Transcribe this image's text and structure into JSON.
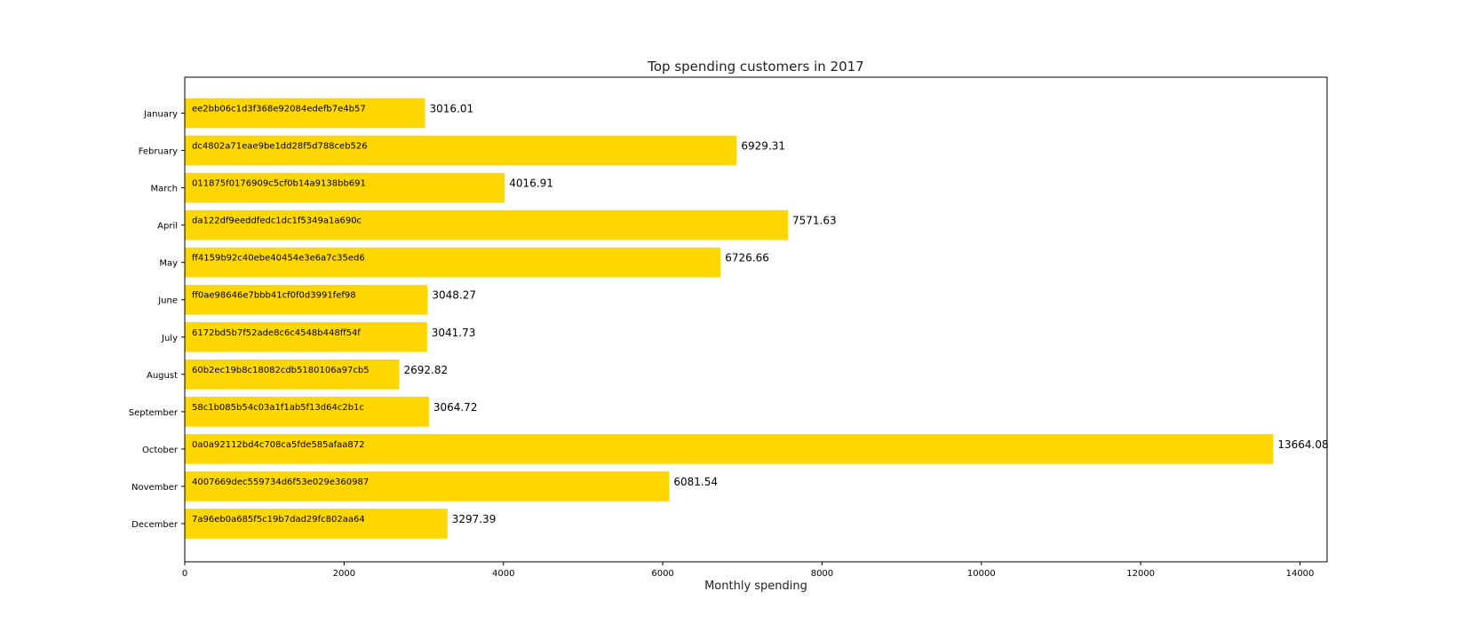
{
  "chart_data": {
    "type": "bar",
    "orientation": "horizontal",
    "title": "Top spending customers in 2017",
    "xlabel": "Monthly spending",
    "ylabel": "",
    "xlim": [
      0,
      14340
    ],
    "xticks": [
      0,
      2000,
      4000,
      6000,
      8000,
      10000,
      12000,
      14000
    ],
    "grid": false,
    "bar_color": "#ffd700",
    "categories": [
      "January",
      "February",
      "March",
      "April",
      "May",
      "June",
      "July",
      "August",
      "September",
      "October",
      "November",
      "December"
    ],
    "values": [
      3016.01,
      6929.31,
      4016.91,
      7571.63,
      6726.66,
      3048.27,
      3041.73,
      2692.82,
      3064.72,
      13664.08,
      6081.54,
      3297.39
    ],
    "value_labels": [
      "3016.01",
      "6929.31",
      "4016.91",
      "7571.63",
      "6726.66",
      "3048.27",
      "3041.73",
      "2692.82",
      "3064.72",
      "13664.08",
      "6081.54",
      "3297.39"
    ],
    "customer_ids": [
      "ee2bb06c1d3f368e92084edefb7e4b57",
      "dc4802a71eae9be1dd28f5d788ceb526",
      "011875f0176909c5cf0b14a9138bb691",
      "da122df9eeddfedc1dc1f5349a1a690c",
      "ff4159b92c40ebe40454e3e6a7c35ed6",
      "ff0ae98646e7bbb41cf0f0d3991fef98",
      "6172bd5b7f52ade8c6c4548b448ff54f",
      "60b2ec19b8c18082cdb5180106a97cb5",
      "58c1b085b54c03a1f1ab5f13d64c2b1c",
      "0a0a92112bd4c708ca5fde585afaa872",
      "4007669dec559734d6f53e029e360987",
      "7a96eb0a685f5c19b7dad29fc802aa64"
    ]
  }
}
